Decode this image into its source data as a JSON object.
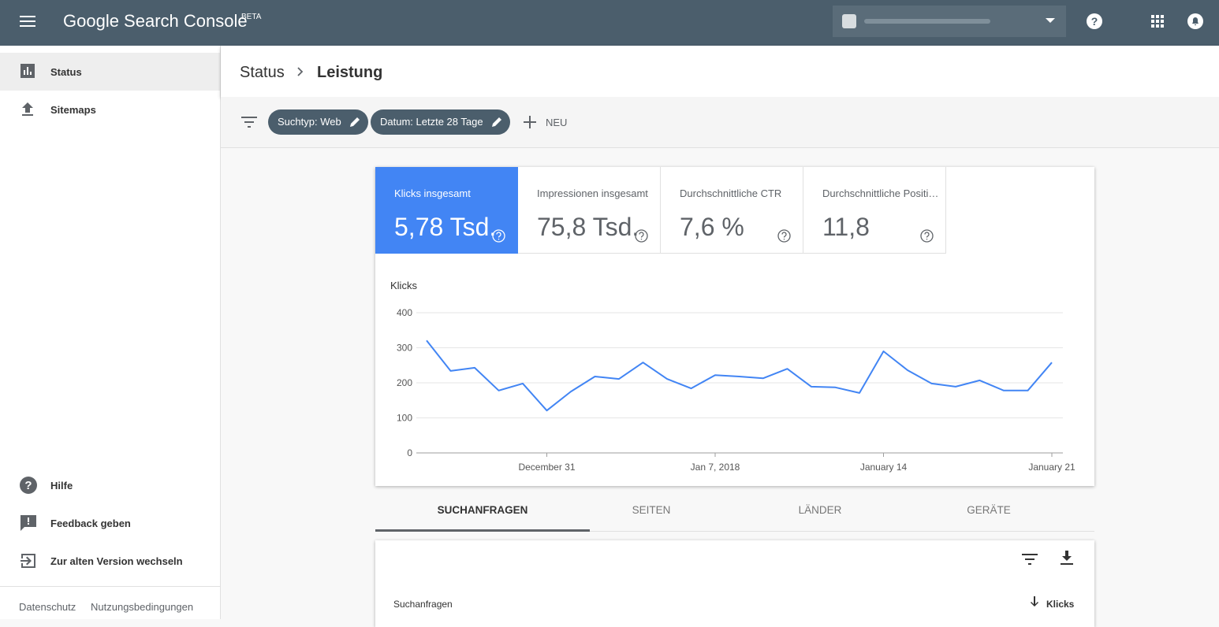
{
  "header": {
    "title": "Google Search Console",
    "badge": "BETA"
  },
  "sidebar": {
    "nav": [
      "Status",
      "Sitemaps"
    ],
    "bottom": [
      "Hilfe",
      "Feedback geben",
      "Zur alten Version wechseln"
    ],
    "footer": [
      "Datenschutz",
      "Nutzungsbedingungen"
    ]
  },
  "breadcrumb": [
    "Status",
    "Leistung"
  ],
  "filters": {
    "chips": [
      "Suchtyp: Web",
      "Datum: Letzte 28 Tage"
    ],
    "new": "NEU"
  },
  "metrics": [
    {
      "label": "Klicks insgesamt",
      "value": "5,78 Tsd."
    },
    {
      "label": "Impressionen insgesamt",
      "value": "75,8 Tsd."
    },
    {
      "label": "Durchschnittliche CTR",
      "value": "7,6 %"
    },
    {
      "label": "Durchschnittliche Positi…",
      "value": "11,8"
    }
  ],
  "chart_data": {
    "type": "line",
    "y_label": "Klicks",
    "categories": [
      null,
      null,
      null,
      null,
      null,
      "December 31",
      null,
      null,
      null,
      null,
      null,
      null,
      "Jan 7, 2018",
      null,
      null,
      null,
      null,
      null,
      null,
      "January 14",
      null,
      null,
      null,
      null,
      null,
      null,
      "January 21"
    ],
    "values": [
      321,
      234,
      243,
      178,
      198,
      121,
      175,
      218,
      211,
      258,
      211,
      184,
      222,
      218,
      213,
      240,
      189,
      187,
      171,
      290,
      236,
      198,
      189,
      207,
      178,
      178,
      258
    ],
    "color": "#4285f4",
    "ylim": [
      0,
      400
    ],
    "yticks": [
      0,
      100,
      200,
      300,
      400
    ],
    "grid": true
  },
  "tabs": [
    "SUCHANFRAGEN",
    "SEITEN",
    "LÄNDER",
    "GERÄTE"
  ],
  "table": {
    "columns": [
      "Suchanfragen",
      "Klicks"
    ]
  }
}
